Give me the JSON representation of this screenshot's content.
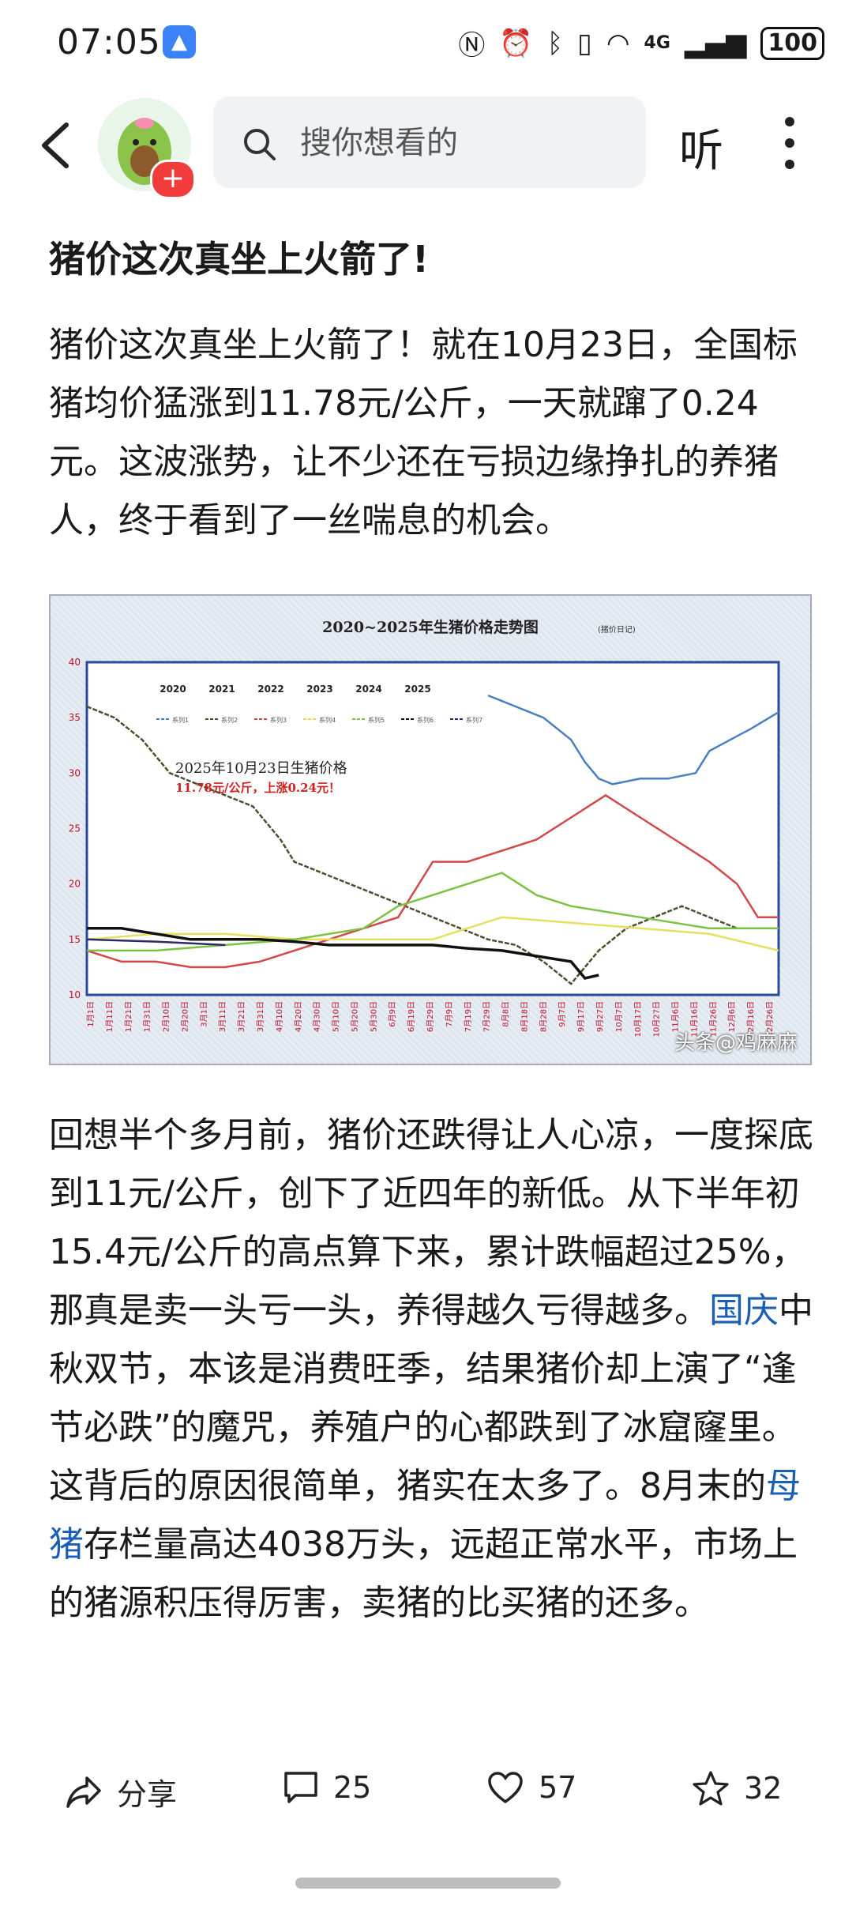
{
  "status": {
    "time": "07:05",
    "signal": "4G",
    "battery": "100"
  },
  "search": {
    "placeholder": "搜你想看的"
  },
  "header": {
    "listen_label": "听"
  },
  "article": {
    "title": "猪价这次真坐上火箭了!",
    "p1": "猪价这次真坐上火箭了！就在10月23日，全国标猪均价猛涨到11.78元/公斤，一天就蹿了0.24元。这波涨势，让不少还在亏损边缘挣扎的养猪人，终于看到了一丝喘息的机会。",
    "p2_a": "回想半个多月前，猪价还跌得让人心凉，一度探底到11元/公斤，创下了近四年的新低。从下半年初15.4元/公斤的高点算下来，累计跌幅超过25%，那真是卖一头亏一头，养得越久亏得越多。",
    "p2_link1": "国庆",
    "p2_b": "中秋双节，本该是消费旺季，结果猪价却上演了“逢节必跌”的魔咒，养殖户的心都跌到了冰窟窿里。这背后的原因很简单，猪实在太多了。8月末的",
    "p2_link2": "母猪",
    "p2_c": "存栏量高达4038万头，远超正常水平，市场上的猪源积压得厉害，卖猪的比买猪的还多。"
  },
  "chart_data": {
    "type": "line",
    "title": "2020~2025年生猪价格走势图",
    "title_suffix": "(猪价日记)",
    "ylim": [
      10,
      40
    ],
    "yticks": [
      "10",
      "15",
      "20",
      "25",
      "30",
      "35",
      "40"
    ],
    "year_labels": [
      "2020",
      "2021",
      "2022",
      "2023",
      "2024",
      "2025"
    ],
    "legend": [
      "系列1",
      "系列2",
      "系列3",
      "系列4",
      "系列5",
      "系列6",
      "系列7"
    ],
    "annotation_line1": "2025年10月23日生猪价格",
    "annotation_line2": "11.78元/公斤，上涨0.24元！",
    "xticks": [
      "1月1日",
      "1月11日",
      "1月21日",
      "1月31日",
      "2月10日",
      "2月20日",
      "3月1日",
      "3月11日",
      "3月21日",
      "3月31日",
      "4月10日",
      "4月20日",
      "4月30日",
      "5月10日",
      "5月20日",
      "5月30日",
      "6月9日",
      "6月19日",
      "6月29日",
      "7月9日",
      "7月19日",
      "7月29日",
      "8月8日",
      "8月18日",
      "8月28日",
      "9月7日",
      "9月17日",
      "9月27日",
      "10月7日",
      "10月17日",
      "10月27日",
      "11月6日",
      "11月16日",
      "11月26日",
      "12月6日",
      "12月16日",
      "12月26日"
    ],
    "series": [
      {
        "name": "系列1",
        "color": "#4a7fbf",
        "x": [
          0.58,
          0.62,
          0.66,
          0.7,
          0.72,
          0.74,
          0.76,
          0.8,
          0.84,
          0.88,
          0.9,
          0.93,
          0.96,
          1.0
        ],
        "values": [
          37,
          36,
          35,
          33,
          31,
          29.5,
          29,
          29.5,
          29.5,
          30,
          32,
          33,
          34,
          35.5
        ]
      },
      {
        "name": "系列2",
        "color": "#4e4e2e",
        "x": [
          0.0,
          0.04,
          0.08,
          0.12,
          0.16,
          0.2,
          0.24,
          0.28,
          0.3,
          0.34,
          0.38,
          0.42,
          0.46,
          0.5,
          0.54,
          0.58,
          0.62,
          0.66,
          0.7,
          0.74,
          0.78,
          0.82,
          0.86,
          0.9,
          0.94,
          1.0
        ],
        "values": [
          36,
          35,
          33,
          30,
          29,
          28,
          27,
          24,
          22,
          21,
          20,
          19,
          18,
          17,
          16,
          15,
          14.5,
          13,
          11,
          14,
          16,
          17,
          18,
          17,
          16,
          16
        ]
      },
      {
        "name": "系列3",
        "color": "#d04848",
        "x": [
          0.0,
          0.05,
          0.1,
          0.15,
          0.2,
          0.25,
          0.3,
          0.35,
          0.4,
          0.45,
          0.5,
          0.55,
          0.6,
          0.65,
          0.7,
          0.75,
          0.8,
          0.85,
          0.9,
          0.94,
          0.97,
          1.0
        ],
        "values": [
          14,
          13,
          13,
          12.5,
          12.5,
          13,
          14,
          15,
          16,
          17,
          22,
          22,
          23,
          24,
          26,
          28,
          26,
          24,
          22,
          20,
          17,
          17
        ]
      },
      {
        "name": "系列4",
        "color": "#e8df60",
        "x": [
          0.0,
          0.1,
          0.2,
          0.3,
          0.4,
          0.5,
          0.6,
          0.7,
          0.8,
          0.9,
          1.0
        ],
        "values": [
          15,
          15.5,
          15.5,
          15,
          15,
          15,
          17,
          16.5,
          16,
          15.5,
          14
        ]
      },
      {
        "name": "系列5",
        "color": "#7cc242",
        "x": [
          0.0,
          0.1,
          0.2,
          0.3,
          0.4,
          0.45,
          0.5,
          0.55,
          0.6,
          0.65,
          0.7,
          0.75,
          0.8,
          0.85,
          0.9,
          0.95,
          1.0
        ],
        "values": [
          14,
          14,
          14.5,
          15,
          16,
          18,
          19,
          20,
          21,
          19,
          18,
          17.5,
          17,
          16.5,
          16,
          16,
          16
        ]
      },
      {
        "name": "系列6",
        "color": "#111111",
        "x": [
          0.0,
          0.05,
          0.1,
          0.15,
          0.2,
          0.25,
          0.3,
          0.35,
          0.4,
          0.45,
          0.5,
          0.55,
          0.6,
          0.65,
          0.7,
          0.72,
          0.74
        ],
        "values": [
          16,
          16,
          15.5,
          15,
          15,
          15,
          14.8,
          14.5,
          14.5,
          14.5,
          14.5,
          14.2,
          14,
          13.5,
          13,
          11.5,
          11.78
        ]
      },
      {
        "name": "系列7",
        "color": "#2a2a6a",
        "x": [
          0.0,
          0.1,
          0.2
        ],
        "values": [
          15,
          14.8,
          14.5
        ]
      }
    ]
  },
  "chart_watermark": "头条@鸡麻麻",
  "actions": {
    "share": "分享",
    "comments": "25",
    "likes": "57",
    "favorites": "32"
  }
}
